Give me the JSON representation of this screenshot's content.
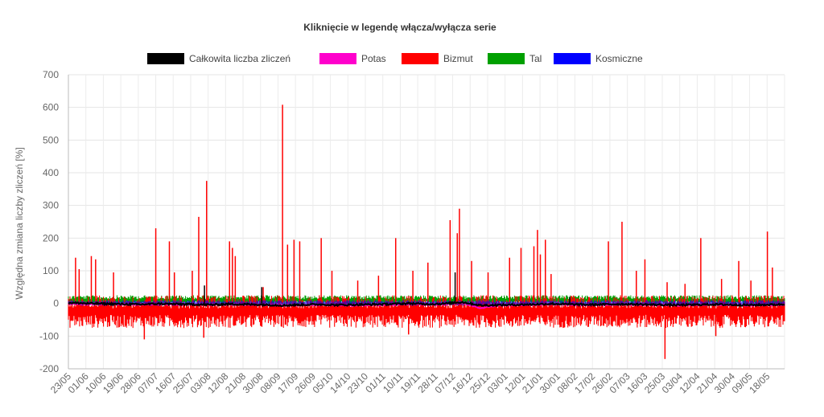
{
  "chart_data": {
    "type": "line",
    "title": "Kliknięcie w legendę włącza/wyłącza serie",
    "ylabel": "Względna zmiana liczby zliczeń [%]",
    "xlabel": "",
    "ylim": [
      -200,
      700
    ],
    "yticks": [
      -200,
      -100,
      0,
      100,
      200,
      300,
      400,
      500,
      600,
      700
    ],
    "grid": true,
    "legend_position": "top",
    "categories": [
      "23/05",
      "01/06",
      "10/06",
      "19/06",
      "28/06",
      "07/07",
      "16/07",
      "25/07",
      "03/08",
      "12/08",
      "21/08",
      "30/08",
      "08/09",
      "17/09",
      "26/09",
      "05/10",
      "14/10",
      "23/10",
      "01/11",
      "10/11",
      "19/11",
      "28/11",
      "07/12",
      "16/12",
      "25/12",
      "03/01",
      "12/01",
      "21/01",
      "30/01",
      "08/02",
      "17/02",
      "26/02",
      "07/03",
      "16/03",
      "25/03",
      "03/04",
      "12/04",
      "21/04",
      "30/04",
      "09/05",
      "18/05"
    ],
    "series": [
      {
        "name": "Całkowita liczba zliczeń",
        "color": "#000000",
        "values": [
          2,
          0,
          -1,
          -2,
          -3,
          -1,
          -2,
          -3,
          -4,
          -2,
          -3,
          -4,
          -6,
          -4,
          -3,
          -5,
          -4,
          -3,
          -2,
          0,
          -2,
          -1,
          4,
          -6,
          -5,
          -4,
          -3,
          -1,
          -3,
          -4,
          -3,
          -2,
          -3,
          -4,
          -5,
          -4,
          -3,
          -4,
          -5,
          -4,
          -3
        ],
        "spikes": [
          {
            "x": 19,
            "y": 55
          },
          {
            "x": 27,
            "y": 50
          },
          {
            "x": 54,
            "y": 95
          },
          {
            "x": 70,
            "y": 20
          }
        ]
      },
      {
        "name": "Potas",
        "color": "#ff00cc",
        "values": [
          -1,
          -2,
          -2,
          -3,
          -3,
          -2,
          -3,
          -3,
          -4,
          -3,
          -4,
          -5,
          -6,
          -5,
          -5,
          -6,
          -6,
          -5,
          -4,
          -2,
          -4,
          -3,
          2,
          -14,
          -6,
          -5,
          -4,
          -2,
          -4,
          -5,
          -4,
          -3,
          -4,
          -5,
          -6,
          -5,
          -4,
          -5,
          -6,
          -5,
          -4
        ]
      },
      {
        "name": "Bizmut",
        "color": "#ff0000",
        "baseline_min": -75,
        "baseline_max": 25,
        "spikes": [
          {
            "x": 1.0,
            "y": 140
          },
          {
            "x": 1.5,
            "y": 105
          },
          {
            "x": 3.2,
            "y": 145
          },
          {
            "x": 3.8,
            "y": 135
          },
          {
            "x": 6.3,
            "y": 95
          },
          {
            "x": 12.2,
            "y": 230
          },
          {
            "x": 14.1,
            "y": 190
          },
          {
            "x": 14.8,
            "y": 95
          },
          {
            "x": 17.3,
            "y": 100
          },
          {
            "x": 18.2,
            "y": 265
          },
          {
            "x": 19.3,
            "y": 375
          },
          {
            "x": 22.5,
            "y": 190
          },
          {
            "x": 22.9,
            "y": 170
          },
          {
            "x": 23.3,
            "y": 145
          },
          {
            "x": 27.2,
            "y": 50
          },
          {
            "x": 29.9,
            "y": 608
          },
          {
            "x": 30.6,
            "y": 180
          },
          {
            "x": 31.5,
            "y": 195
          },
          {
            "x": 32.3,
            "y": 190
          },
          {
            "x": 35.3,
            "y": 200
          },
          {
            "x": 36.8,
            "y": 100
          },
          {
            "x": 40.4,
            "y": 70
          },
          {
            "x": 43.3,
            "y": 85
          },
          {
            "x": 45.7,
            "y": 200
          },
          {
            "x": 48.1,
            "y": 100
          },
          {
            "x": 50.2,
            "y": 125
          },
          {
            "x": 53.3,
            "y": 255
          },
          {
            "x": 54.3,
            "y": 215
          },
          {
            "x": 54.6,
            "y": 290
          },
          {
            "x": 56.3,
            "y": 130
          },
          {
            "x": 58.6,
            "y": 95
          },
          {
            "x": 61.6,
            "y": 140
          },
          {
            "x": 63.2,
            "y": 170
          },
          {
            "x": 65.0,
            "y": 175
          },
          {
            "x": 65.5,
            "y": 225
          },
          {
            "x": 65.9,
            "y": 150
          },
          {
            "x": 66.6,
            "y": 195
          },
          {
            "x": 67.4,
            "y": 90
          },
          {
            "x": 75.4,
            "y": 190
          },
          {
            "x": 77.3,
            "y": 250
          },
          {
            "x": 79.3,
            "y": 100
          },
          {
            "x": 80.5,
            "y": 135
          },
          {
            "x": 83.6,
            "y": 65
          },
          {
            "x": 86.1,
            "y": 60
          },
          {
            "x": 88.3,
            "y": 200
          },
          {
            "x": 91.2,
            "y": 75
          },
          {
            "x": 93.6,
            "y": 130
          },
          {
            "x": 95.3,
            "y": 70
          },
          {
            "x": 97.6,
            "y": 220
          },
          {
            "x": 98.3,
            "y": 110
          }
        ],
        "dips": [
          {
            "x": 83.3,
            "y": -170
          },
          {
            "x": 10.6,
            "y": -110
          },
          {
            "x": 18.9,
            "y": -105
          },
          {
            "x": 47.5,
            "y": -95
          },
          {
            "x": 90.4,
            "y": -100
          }
        ]
      },
      {
        "name": "Tal",
        "color": "#00a000",
        "baseline_min": -5,
        "baseline_max": 25
      },
      {
        "name": "Kosmiczne",
        "color": "#0000ff",
        "baseline_min": -8,
        "baseline_max": 10
      }
    ]
  }
}
